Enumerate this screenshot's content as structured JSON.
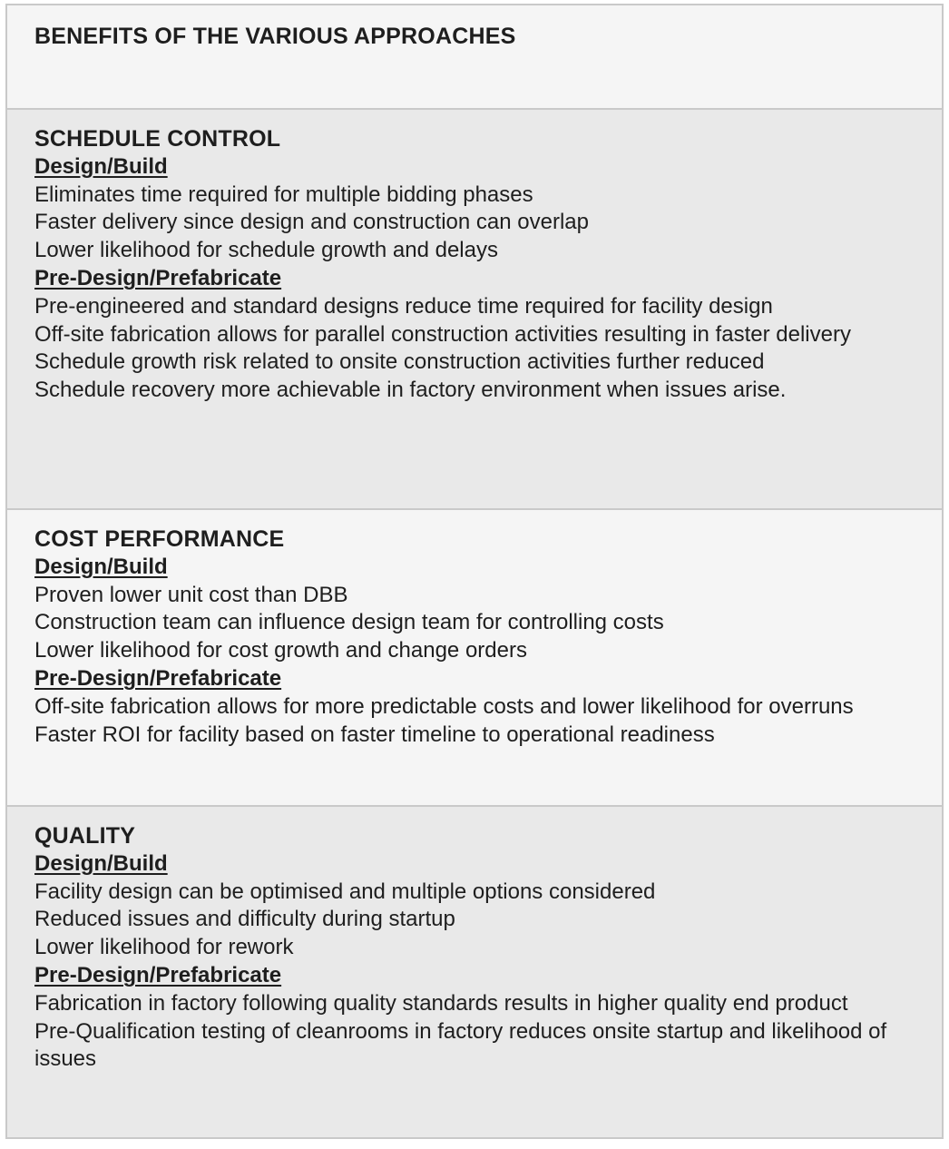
{
  "page": {
    "background_color": "#ffffff",
    "text_color": "#1e1e1e",
    "border_color": "#c9c9c9"
  },
  "table": {
    "header": {
      "title": "BENEFITS OF THE VARIOUS APPROACHES",
      "background": "#f5f5f5"
    },
    "sections": [
      {
        "title": "SCHEDULE CONTROL",
        "background": "#e9e9e9",
        "groups": [
          {
            "label": "Design/Build",
            "items": [
              "Eliminates time required for multiple bidding phases",
              "Faster delivery since design and construction can overlap",
              "Lower likelihood for schedule growth and delays"
            ]
          },
          {
            "label": "Pre-Design/Prefabricate",
            "items": [
              "Pre-engineered and standard designs reduce time required for facility design",
              "Off-site fabrication allows for parallel construction activities resulting in faster delivery",
              "Schedule growth risk related to onsite construction activities further reduced",
              "Schedule recovery more achievable in factory environment when issues arise."
            ]
          }
        ]
      },
      {
        "title": "COST PERFORMANCE",
        "background": "#f5f5f5",
        "groups": [
          {
            "label": "Design/Build",
            "items": [
              "Proven lower unit cost than DBB",
              "Construction team can influence design team for controlling costs",
              "Lower likelihood for cost growth and change orders"
            ]
          },
          {
            "label": "Pre-Design/Prefabricate",
            "items": [
              "Off-site fabrication allows for more predictable costs and lower likelihood for overruns",
              "Faster ROI for facility based on faster timeline to operational readiness"
            ]
          }
        ]
      },
      {
        "title": "QUALITY",
        "background": "#e9e9e9",
        "groups": [
          {
            "label": "Design/Build",
            "items": [
              "Facility design can be optimised and multiple options considered",
              "Reduced issues and difficulty during startup",
              "Lower likelihood for rework"
            ]
          },
          {
            "label": "Pre-Design/Prefabricate",
            "items": [
              "Fabrication in factory following quality standards results in higher quality end product",
              "Pre-Qualification testing of cleanrooms in factory reduces onsite startup and likelihood of issues"
            ]
          }
        ]
      }
    ]
  }
}
